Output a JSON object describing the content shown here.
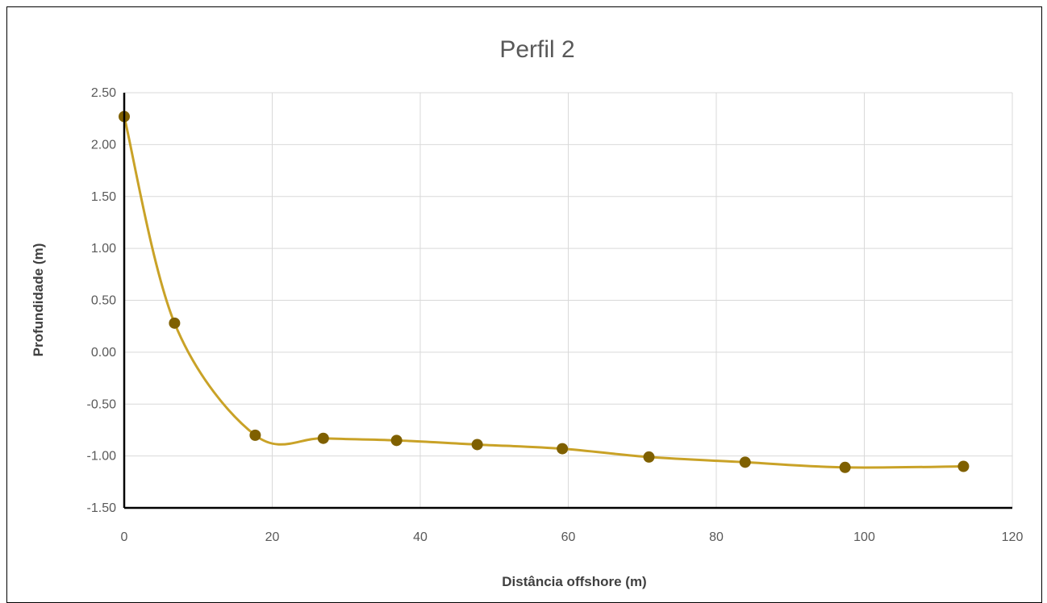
{
  "chart_data": {
    "type": "line",
    "title": "Perfil 2",
    "xlabel": "Distância offshore (m)",
    "ylabel": "Profundidade (m)",
    "xlim": [
      0,
      120
    ],
    "ylim": [
      -1.5,
      2.5
    ],
    "x_ticks": [
      0,
      20,
      40,
      60,
      80,
      100,
      120
    ],
    "y_ticks": [
      "-1.50",
      "-1.00",
      "-0.50",
      "0.00",
      "0.50",
      "1.00",
      "1.50",
      "2.00",
      "2.50"
    ],
    "grid": true,
    "legend": "none",
    "smooth": true,
    "series": [
      {
        "line_color": "#C9A227",
        "marker_color": "#7F6000",
        "points": [
          {
            "x": 0,
            "y": 2.27
          },
          {
            "x": 6.8,
            "y": 0.28
          },
          {
            "x": 17.7,
            "y": -0.8
          },
          {
            "x": 26.9,
            "y": -0.83
          },
          {
            "x": 36.8,
            "y": -0.85
          },
          {
            "x": 47.7,
            "y": -0.89
          },
          {
            "x": 59.2,
            "y": -0.93
          },
          {
            "x": 70.9,
            "y": -1.01
          },
          {
            "x": 83.9,
            "y": -1.06
          },
          {
            "x": 97.4,
            "y": -1.11
          },
          {
            "x": 113.4,
            "y": -1.1
          }
        ]
      }
    ]
  }
}
